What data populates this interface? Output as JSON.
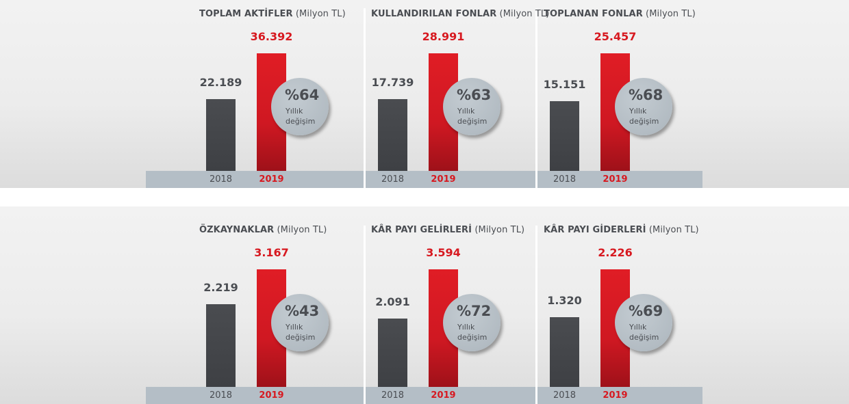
{
  "chart_data": [
    {
      "type": "bar",
      "title": "TOPLAM AKTİFLER",
      "unit": "(Milyon TL)",
      "categories": [
        "2018",
        "2019"
      ],
      "values": [
        22.189,
        36.392
      ],
      "value_labels": [
        "22.189",
        "36.392"
      ],
      "change": {
        "value": "%64",
        "label_line1": "Yıllık",
        "label_line2": "değişim"
      },
      "colors": {
        "2018": "#45474b",
        "2019": "#d71920"
      }
    },
    {
      "type": "bar",
      "title": "KULLANDIRILAN FONLAR",
      "unit": "(Milyon TL)",
      "categories": [
        "2018",
        "2019"
      ],
      "values": [
        17.739,
        28.991
      ],
      "value_labels": [
        "17.739",
        "28.991"
      ],
      "change": {
        "value": "%63",
        "label_line1": "Yıllık",
        "label_line2": "değişim"
      },
      "colors": {
        "2018": "#45474b",
        "2019": "#d71920"
      }
    },
    {
      "type": "bar",
      "title": "TOPLANAN FONLAR",
      "unit": "(Milyon TL)",
      "categories": [
        "2018",
        "2019"
      ],
      "values": [
        15.151,
        25.457
      ],
      "value_labels": [
        "15.151",
        "25.457"
      ],
      "change": {
        "value": "%68",
        "label_line1": "Yıllık",
        "label_line2": "değişim"
      },
      "colors": {
        "2018": "#45474b",
        "2019": "#d71920"
      }
    },
    {
      "type": "bar",
      "title": "ÖZKAYNAKLAR",
      "unit": "(Milyon TL)",
      "categories": [
        "2018",
        "2019"
      ],
      "values": [
        2.219,
        3.167
      ],
      "value_labels": [
        "2.219",
        "3.167"
      ],
      "change": {
        "value": "%43",
        "label_line1": "Yıllık",
        "label_line2": "değişim"
      },
      "colors": {
        "2018": "#45474b",
        "2019": "#d71920"
      }
    },
    {
      "type": "bar",
      "title": "KÂR PAYI GELİRLERİ",
      "unit": "(Milyon TL)",
      "categories": [
        "2018",
        "2019"
      ],
      "values": [
        2.091,
        3.594
      ],
      "value_labels": [
        "2.091",
        "3.594"
      ],
      "change": {
        "value": "%72",
        "label_line1": "Yıllık",
        "label_line2": "değişim"
      },
      "colors": {
        "2018": "#45474b",
        "2019": "#d71920"
      }
    },
    {
      "type": "bar",
      "title": "KÂR PAYI GİDERLERİ",
      "unit": "(Milyon TL)",
      "categories": [
        "2018",
        "2019"
      ],
      "values": [
        1.32,
        2.226
      ],
      "value_labels": [
        "1.320",
        "2.226"
      ],
      "change": {
        "value": "%69",
        "label_line1": "Yıllık",
        "label_line2": "değişim"
      },
      "colors": {
        "2018": "#45474b",
        "2019": "#d71920"
      }
    }
  ]
}
